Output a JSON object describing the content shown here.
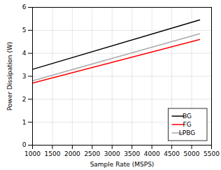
{
  "chart_data": {
    "type": "line",
    "xlabel": "Sample Rate (MSPS)",
    "ylabel": "Power Dissipation (W)",
    "x": [
      1000,
      5200
    ],
    "series": [
      {
        "name": "BG",
        "color": "#000000",
        "values": [
          3.3,
          5.45
        ]
      },
      {
        "name": "FG",
        "color": "#ff0000",
        "values": [
          2.7,
          4.6
        ]
      },
      {
        "name": "LPBG",
        "color": "#aaaaaa",
        "values": [
          2.8,
          4.85
        ]
      }
    ],
    "xlim": [
      1000,
      5500
    ],
    "ylim": [
      0,
      6
    ],
    "xticks": [
      1000,
      1500,
      2000,
      2500,
      3000,
      3500,
      4000,
      4500,
      5000,
      5500
    ],
    "yticks": [
      0,
      1,
      2,
      3,
      4,
      5,
      6
    ],
    "grid": true,
    "legend": "lower right"
  }
}
